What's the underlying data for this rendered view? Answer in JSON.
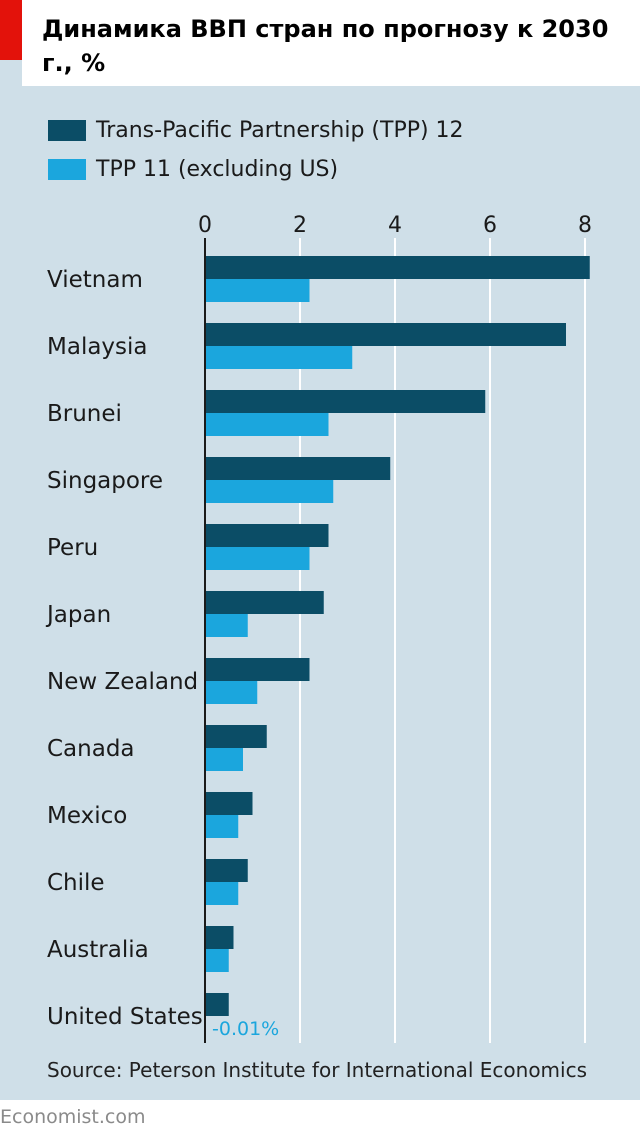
{
  "title": "Динамика ВВП стран по прогнозу к 2030 г., %",
  "source": "Source: Peterson Institute for International Economics",
  "brand": "Economist.com",
  "colors": {
    "tpp12": "#0b4d66",
    "tpp11": "#1ba6dd",
    "background": "#cfdfe8",
    "grid": "#ffffff",
    "negative_label": "#1ba6dd"
  },
  "chart_data": {
    "type": "bar",
    "orientation": "horizontal",
    "title": "Динамика ВВП стран по прогнозу к 2030 г., %",
    "categories": [
      "Vietnam",
      "Malaysia",
      "Brunei",
      "Singapore",
      "Peru",
      "Japan",
      "New Zealand",
      "Canada",
      "Mexico",
      "Chile",
      "Australia",
      "United States"
    ],
    "series": [
      {
        "name": "Trans-Pacific Partnership (TPP) 12",
        "values": [
          8.1,
          7.6,
          5.9,
          3.9,
          2.6,
          2.5,
          2.2,
          1.3,
          1.0,
          0.9,
          0.6,
          0.5
        ]
      },
      {
        "name": "TPP 11 (excluding US)",
        "values": [
          2.2,
          3.1,
          2.6,
          2.7,
          2.2,
          0.9,
          1.1,
          0.8,
          0.7,
          0.7,
          0.5,
          -0.01
        ]
      }
    ],
    "data_labels": [
      {
        "series": 1,
        "category": "United States",
        "text": "-0.01%"
      }
    ],
    "xlim": [
      0,
      8.2
    ],
    "xticks": [
      0,
      2,
      4,
      6,
      8
    ],
    "grid": true,
    "axis_position": "top",
    "legend_position": "top-left"
  }
}
